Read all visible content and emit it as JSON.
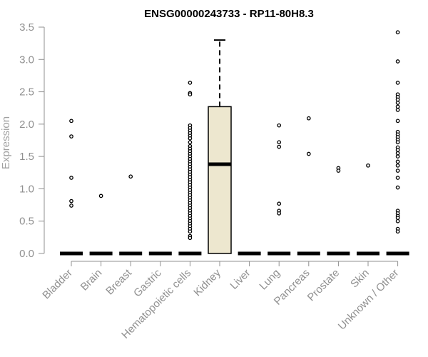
{
  "chart_data": {
    "type": "box",
    "title": "ENSG00000243733 - RP11-80H8.3",
    "xlabel": "",
    "ylabel": "Expression",
    "ylim": [
      0,
      3.5
    ],
    "yticks": [
      "0.0",
      "0.5",
      "1.0",
      "1.5",
      "2.0",
      "2.5",
      "3.0",
      "3.5"
    ],
    "categories": [
      "Bladder",
      "Brain",
      "Breast",
      "Gastric",
      "Hematopoietic cells",
      "Kidney",
      "Liver",
      "Lung",
      "Pancreas",
      "Prostate",
      "Skin",
      "Unknown / Other"
    ],
    "box_fill": "#ede7cf",
    "series": [
      {
        "category": "Bladder",
        "median": 0,
        "q1": 0,
        "q3": 0,
        "whisker_low": 0,
        "whisker_high": 0,
        "outliers": [
          2.05,
          1.81,
          1.17,
          0.81,
          0.74
        ]
      },
      {
        "category": "Brain",
        "median": 0,
        "q1": 0,
        "q3": 0,
        "whisker_low": 0,
        "whisker_high": 0,
        "outliers": [
          0.89
        ]
      },
      {
        "category": "Breast",
        "median": 0,
        "q1": 0,
        "q3": 0,
        "whisker_low": 0,
        "whisker_high": 0,
        "outliers": [
          1.19
        ]
      },
      {
        "category": "Gastric",
        "median": 0,
        "q1": 0,
        "q3": 0,
        "whisker_low": 0,
        "whisker_high": 0,
        "outliers": []
      },
      {
        "category": "Hematopoietic cells",
        "median": 0,
        "q1": 0,
        "q3": 0,
        "whisker_low": 0,
        "whisker_high": 0,
        "outliers": [
          2.64,
          2.48,
          2.46,
          1.98,
          1.94,
          1.9,
          1.86,
          1.82,
          1.78,
          1.72,
          1.66,
          1.62,
          1.58,
          1.54,
          1.5,
          1.46,
          1.42,
          1.38,
          1.34,
          1.3,
          1.26,
          1.22,
          1.18,
          1.14,
          1.1,
          1.06,
          1.02,
          0.98,
          0.94,
          0.9,
          0.86,
          0.82,
          0.78,
          0.74,
          0.7,
          0.66,
          0.62,
          0.58,
          0.54,
          0.5,
          0.46,
          0.42,
          0.38,
          0.34,
          0.27,
          0.24
        ]
      },
      {
        "category": "Kidney",
        "median": 1.38,
        "q1": 0,
        "q3": 2.27,
        "whisker_low": 0,
        "whisker_high": 3.3,
        "outliers": []
      },
      {
        "category": "Liver",
        "median": 0,
        "q1": 0,
        "q3": 0,
        "whisker_low": 0,
        "whisker_high": 0,
        "outliers": []
      },
      {
        "category": "Lung",
        "median": 0,
        "q1": 0,
        "q3": 0,
        "whisker_low": 0,
        "whisker_high": 0,
        "outliers": [
          1.98,
          1.72,
          1.65,
          0.77,
          0.66,
          0.62
        ]
      },
      {
        "category": "Pancreas",
        "median": 0,
        "q1": 0,
        "q3": 0,
        "whisker_low": 0,
        "whisker_high": 0,
        "outliers": [
          2.09,
          1.54
        ]
      },
      {
        "category": "Prostate",
        "median": 0,
        "q1": 0,
        "q3": 0,
        "whisker_low": 0,
        "whisker_high": 0,
        "outliers": [
          1.32,
          1.28
        ]
      },
      {
        "category": "Skin",
        "median": 0,
        "q1": 0,
        "q3": 0,
        "whisker_low": 0,
        "whisker_high": 0,
        "outliers": [
          1.36
        ]
      },
      {
        "category": "Unknown / Other",
        "median": 0,
        "q1": 0,
        "q3": 0,
        "whisker_low": 0,
        "whisker_high": 0,
        "outliers": [
          3.42,
          2.97,
          2.64,
          2.46,
          2.42,
          2.38,
          2.33,
          2.27,
          2.22,
          2.05,
          1.88,
          1.84,
          1.8,
          1.76,
          1.72,
          1.64,
          1.6,
          1.55,
          1.5,
          1.42,
          1.36,
          1.28,
          1.17,
          1.02,
          0.66,
          0.62,
          0.58,
          0.55,
          0.5,
          0.38,
          0.34
        ]
      }
    ]
  }
}
